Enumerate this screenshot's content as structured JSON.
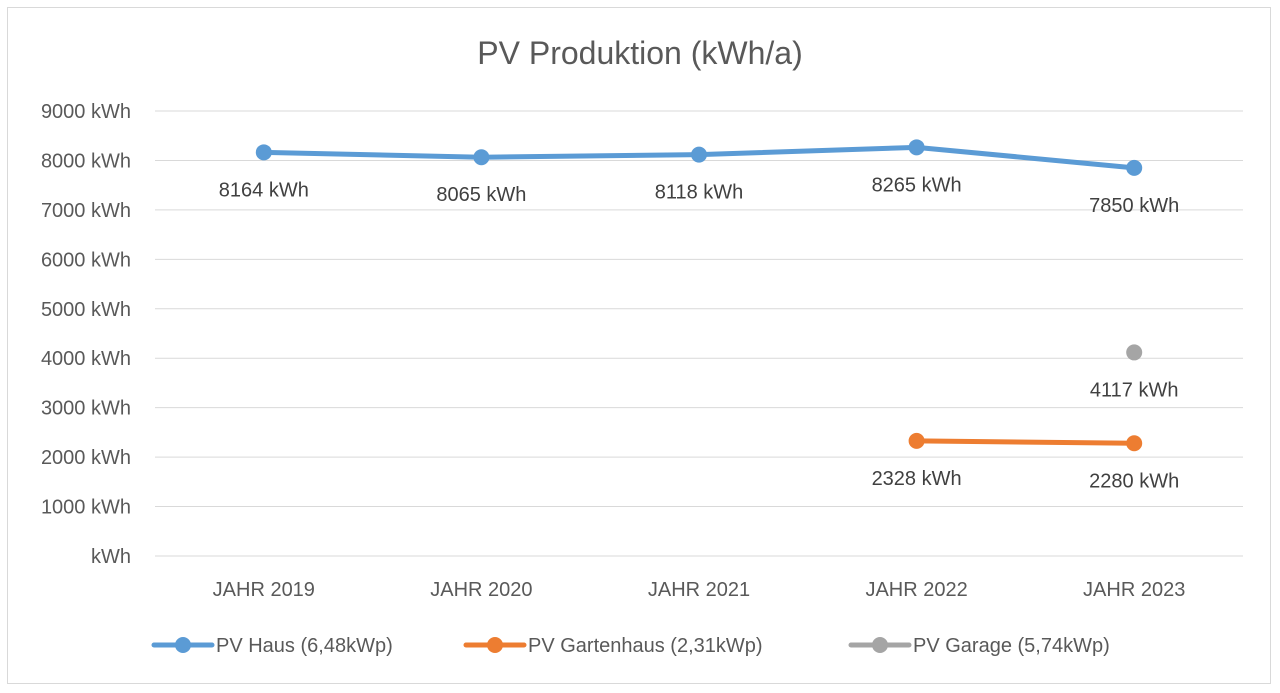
{
  "chart_data": {
    "type": "line",
    "title": "PV Produktion (kWh/a)",
    "xlabel": "",
    "ylabel": "",
    "categories": [
      "JAHR 2019",
      "JAHR 2020",
      "JAHR 2021",
      "JAHR 2022",
      "JAHR 2023"
    ],
    "ylim": [
      0,
      9000
    ],
    "yticks": [
      0,
      1000,
      2000,
      3000,
      4000,
      5000,
      6000,
      7000,
      8000,
      9000
    ],
    "ytick_labels": [
      "kWh",
      "1000 kWh",
      "2000 kWh",
      "3000 kWh",
      "4000 kWh",
      "5000 kWh",
      "6000 kWh",
      "7000 kWh",
      "8000 kWh",
      "9000 kWh"
    ],
    "grid": true,
    "legend_position": "bottom",
    "series": [
      {
        "name": "PV Haus (6,48kWp)",
        "color": "#5b9bd5",
        "values": [
          8164,
          8065,
          8118,
          8265,
          7850
        ],
        "labels": [
          "8164 kWh",
          "8065 kWh",
          "8118 kWh",
          "8265 kWh",
          "7850 kWh"
        ]
      },
      {
        "name": "PV Gartenhaus (2,31kWp)",
        "color": "#ed7d31",
        "values": [
          null,
          null,
          null,
          2328,
          2280
        ],
        "labels": [
          null,
          null,
          null,
          "2328 kWh",
          "2280 kWh"
        ]
      },
      {
        "name": "PV Garage (5,74kWp)",
        "color": "#a5a5a5",
        "values": [
          null,
          null,
          null,
          null,
          4117
        ],
        "labels": [
          null,
          null,
          null,
          null,
          "4117 kWh"
        ]
      }
    ]
  }
}
